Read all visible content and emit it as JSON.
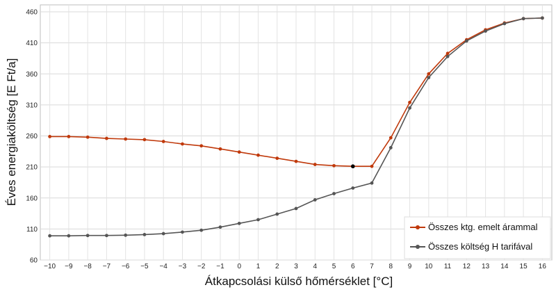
{
  "chart_data": {
    "type": "line",
    "title": "",
    "xlabel": "Átkapcsolási külső hőmérséklet [°C]",
    "ylabel": "Éves energiaköltség [E Ft/a]",
    "x": [
      -10,
      -9,
      -8,
      -7,
      -6,
      -5,
      -4,
      -3,
      -2,
      -1,
      0,
      1,
      2,
      3,
      4,
      5,
      6,
      7,
      8,
      9,
      10,
      11,
      12,
      13,
      14,
      15,
      16
    ],
    "xticks": [
      "−10",
      "−9",
      "−8",
      "−7",
      "−6",
      "−5",
      "−4",
      "−3",
      "−2",
      "−1",
      "0",
      "1",
      "2",
      "3",
      "4",
      "5",
      "6",
      "7",
      "8",
      "9",
      "10",
      "11",
      "12",
      "13",
      "14",
      "15",
      "16"
    ],
    "yticks": [
      "60",
      "110",
      "160",
      "210",
      "260",
      "310",
      "360",
      "410",
      "460"
    ],
    "ytick_values": [
      60,
      110,
      160,
      210,
      260,
      310,
      360,
      410,
      460
    ],
    "ylim": [
      60,
      460
    ],
    "xlim": [
      -10.5,
      16.5
    ],
    "grid": true,
    "legend_position": "bottom-right",
    "series": [
      {
        "name": "Összes ktg. emelt árammal",
        "color": "#c0390b",
        "values": [
          259,
          259,
          258,
          256,
          255,
          254,
          251,
          247,
          244,
          239,
          234,
          229,
          224,
          219,
          214,
          212,
          211,
          211,
          257,
          314,
          360,
          393,
          415,
          431,
          442,
          449,
          450
        ]
      },
      {
        "name": "Összes költség H tarifával",
        "color": "#555555",
        "values": [
          99,
          99,
          99.5,
          99.5,
          100,
          101,
          102.5,
          105,
          108,
          113,
          119,
          125,
          134,
          143,
          157,
          167,
          176,
          184,
          241,
          305,
          354,
          388,
          413,
          429,
          441,
          449,
          450
        ]
      }
    ],
    "highlight_point": {
      "x": 6,
      "y": 211,
      "color": "#000000"
    }
  }
}
